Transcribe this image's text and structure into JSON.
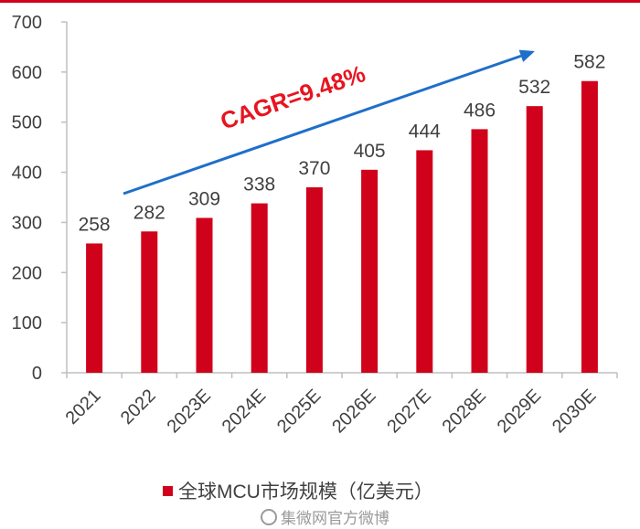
{
  "chart_data": {
    "type": "bar",
    "categories": [
      "2021",
      "2022",
      "2023E",
      "2024E",
      "2025E",
      "2026E",
      "2027E",
      "2028E",
      "2029E",
      "2030E"
    ],
    "series": [
      {
        "name": "全球MCU市场规模（亿美元）",
        "values": [
          258,
          282,
          309,
          338,
          370,
          405,
          444,
          486,
          532,
          582
        ]
      }
    ],
    "data_labels": [
      "258",
      "282",
      "309",
      "338",
      "370",
      "405",
      "444",
      "486",
      "532",
      "582"
    ],
    "yticks": [
      "0",
      "100",
      "200",
      "300",
      "400",
      "500",
      "600",
      "700"
    ],
    "ylim": [
      0,
      700
    ],
    "annotation": "CAGR=9.48%",
    "legend_position": "bottom",
    "grid": false,
    "colors": {
      "bar": "#d0021b",
      "arrow": "#1f6fc9",
      "annotation": "#e8141f",
      "text": "#404040"
    }
  },
  "legend": {
    "label": "全球MCU市场规模（亿美元）"
  },
  "watermark": {
    "text": "集微网官方微博"
  }
}
